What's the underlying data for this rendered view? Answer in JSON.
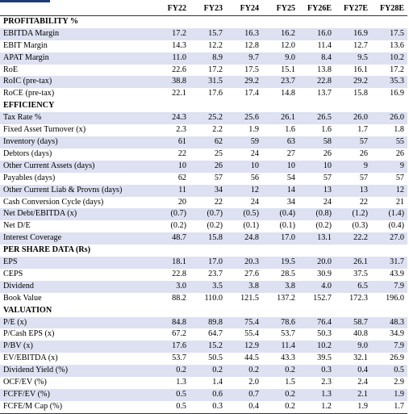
{
  "columns": [
    "FY22",
    "FY23",
    "FY24",
    "FY25",
    "FY26E",
    "FY27E",
    "FY28E"
  ],
  "rows": [
    {
      "type": "section",
      "label": "PROFITABILITY %"
    },
    {
      "type": "data",
      "label": "EBITDA Margin",
      "values": [
        "17.2",
        "15.7",
        "16.3",
        "16.2",
        "16.0",
        "16.9",
        "17.5"
      ]
    },
    {
      "type": "data",
      "label": "EBIT Margin",
      "values": [
        "14.3",
        "12.2",
        "12.8",
        "12.0",
        "11.4",
        "12.7",
        "13.6"
      ]
    },
    {
      "type": "data",
      "label": "APAT Margin",
      "values": [
        "11.0",
        "8.9",
        "9.7",
        "9.0",
        "8.4",
        "9.5",
        "10.2"
      ]
    },
    {
      "type": "data",
      "label": "RoE",
      "values": [
        "22.6",
        "17.2",
        "17.5",
        "15.1",
        "13.8",
        "16.1",
        "17.2"
      ]
    },
    {
      "type": "data",
      "label": "RoIC (pre-tax)",
      "values": [
        "38.8",
        "31.5",
        "29.2",
        "23.7",
        "22.8",
        "29.2",
        "35.3"
      ]
    },
    {
      "type": "data",
      "label": "RoCE (pre-tax)",
      "values": [
        "22.1",
        "17.6",
        "17.4",
        "14.8",
        "13.7",
        "15.8",
        "16.9"
      ]
    },
    {
      "type": "section",
      "label": "EFFICIENCY"
    },
    {
      "type": "data",
      "label": "Tax Rate %",
      "values": [
        "24.3",
        "25.2",
        "25.6",
        "26.1",
        "26.5",
        "26.0",
        "26.0"
      ]
    },
    {
      "type": "data",
      "label": "Fixed Asset Turnover (x)",
      "values": [
        "2.3",
        "2.2",
        "1.9",
        "1.6",
        "1.6",
        "1.7",
        "1.8"
      ]
    },
    {
      "type": "data",
      "label": "Inventory (days)",
      "values": [
        "61",
        "62",
        "59",
        "63",
        "58",
        "57",
        "55"
      ]
    },
    {
      "type": "data",
      "label": "Debtors (days)",
      "values": [
        "22",
        "25",
        "24",
        "27",
        "26",
        "26",
        "26"
      ]
    },
    {
      "type": "data",
      "label": "Other Current Assets (days)",
      "values": [
        "10",
        "26",
        "10",
        "10",
        "10",
        "9",
        "9"
      ]
    },
    {
      "type": "data",
      "label": "Payables (days)",
      "values": [
        "62",
        "57",
        "56",
        "54",
        "57",
        "57",
        "57"
      ]
    },
    {
      "type": "data",
      "label": "Other Current Liab & Provns (days)",
      "values": [
        "11",
        "34",
        "12",
        "14",
        "13",
        "13",
        "12"
      ]
    },
    {
      "type": "data",
      "label": "Cash Conversion Cycle (days)",
      "values": [
        "20",
        "22",
        "24",
        "34",
        "24",
        "22",
        "21"
      ]
    },
    {
      "type": "data",
      "label": "Net Debt/EBITDA (x)",
      "values": [
        "(0.7)",
        "(0.7)",
        "(0.5)",
        "(0.4)",
        "(0.8)",
        "(1.2)",
        "(1.4)"
      ]
    },
    {
      "type": "data",
      "label": "Net D/E",
      "values": [
        "(0.2)",
        "(0.2)",
        "(0.1)",
        "(0.1)",
        "(0.2)",
        "(0.3)",
        "(0.4)"
      ]
    },
    {
      "type": "data",
      "label": "Interest Coverage",
      "values": [
        "48.7",
        "15.8",
        "24.8",
        "17.0",
        "13.1",
        "22.2",
        "27.0"
      ]
    },
    {
      "type": "section",
      "label": "PER SHARE DATA (Rs)"
    },
    {
      "type": "data",
      "label": "EPS",
      "values": [
        "18.1",
        "17.0",
        "20.3",
        "19.5",
        "20.0",
        "26.1",
        "31.7"
      ]
    },
    {
      "type": "data",
      "label": "CEPS",
      "values": [
        "22.8",
        "23.7",
        "27.6",
        "28.5",
        "30.9",
        "37.5",
        "43.9"
      ]
    },
    {
      "type": "data",
      "label": "Dividend",
      "values": [
        "3.0",
        "3.5",
        "3.8",
        "3.8",
        "4.0",
        "6.5",
        "7.9"
      ]
    },
    {
      "type": "data",
      "label": "Book Value",
      "values": [
        "88.2",
        "110.0",
        "121.5",
        "137.2",
        "152.7",
        "172.3",
        "196.0"
      ]
    },
    {
      "type": "section",
      "label": "VALUATION"
    },
    {
      "type": "data",
      "label": "P/E (x)",
      "values": [
        "84.8",
        "89.8",
        "75.4",
        "78.6",
        "76.4",
        "58.7",
        "48.3"
      ]
    },
    {
      "type": "data",
      "label": "P/Cash EPS (x)",
      "values": [
        "67.2",
        "64.7",
        "55.4",
        "53.7",
        "50.3",
        "40.8",
        "34.9"
      ]
    },
    {
      "type": "data",
      "label": "P/BV (x)",
      "values": [
        "17.6",
        "15.2",
        "12.9",
        "11.4",
        "10.2",
        "9.0",
        "7.9"
      ]
    },
    {
      "type": "data",
      "label": "EV/EBITDA (x)",
      "values": [
        "53.7",
        "50.5",
        "44.5",
        "43.3",
        "39.5",
        "32.1",
        "26.9"
      ]
    },
    {
      "type": "data",
      "label": "Dividend Yield (%)",
      "values": [
        "0.2",
        "0.2",
        "0.2",
        "0.2",
        "0.3",
        "0.4",
        "0.5"
      ]
    },
    {
      "type": "data",
      "label": "OCF/EV (%)",
      "values": [
        "1.3",
        "1.4",
        "2.0",
        "1.5",
        "2.3",
        "2.4",
        "2.9"
      ]
    },
    {
      "type": "data",
      "label": "FCFF/EV (%)",
      "values": [
        "0.5",
        "0.6",
        "0.7",
        "0.2",
        "1.3",
        "2.1",
        "1.9"
      ]
    },
    {
      "type": "data",
      "label": "FCFE/M Cap (%)",
      "values": [
        "0.5",
        "0.3",
        "0.4",
        "0.2",
        "1.2",
        "1.9",
        "1.7"
      ]
    }
  ]
}
